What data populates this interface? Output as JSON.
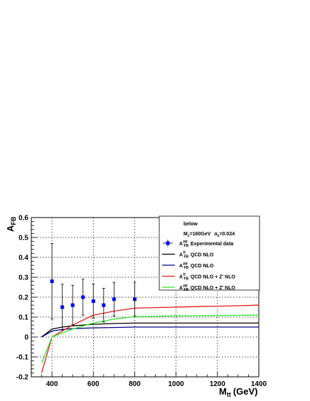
{
  "chart_data": {
    "type": "line",
    "xlabel": {
      "main": "M",
      "sub": "tt",
      "unit": "(GeV)"
    },
    "ylabel": {
      "main": "A",
      "sub": "FB"
    },
    "xlim": [
      300,
      1400
    ],
    "ylim": [
      -0.2,
      0.6
    ],
    "x_ticks": [
      400,
      600,
      800,
      1000,
      1200,
      1400
    ],
    "y_ticks": [
      -0.2,
      -0.1,
      0,
      0.1,
      0.2,
      0.3,
      0.4,
      0.5,
      0.6
    ],
    "grid": true,
    "legend_placement": "top-right",
    "legend_header": {
      "line1": "below",
      "line2_main": "M",
      "line2_sub": "c",
      "line2_rest": "=160GeV",
      "line2_alpha_sub": "s",
      "line2_alpha_rest": "=0.024"
    },
    "experimental": {
      "name": "Experimental data",
      "sym": "A",
      "sup": "pp",
      "sub": "FB",
      "color": "#0000ff",
      "x": [
        400,
        450,
        500,
        550,
        600,
        650,
        700,
        800
      ],
      "y": [
        0.28,
        0.15,
        0.16,
        0.2,
        0.18,
        0.16,
        0.19,
        0.19
      ],
      "err": [
        0.19,
        0.115,
        0.1,
        0.09,
        0.085,
        0.085,
        0.085,
        0.085
      ]
    },
    "series": [
      {
        "name": "QCD NLO",
        "sym": "A",
        "sup": "tt",
        "sub": "FB",
        "color": "#000000",
        "x": [
          350,
          400,
          450,
          500,
          600,
          700,
          800,
          900,
          1000,
          1100,
          1200,
          1300,
          1400
        ],
        "y": [
          0.0,
          0.04,
          0.05,
          0.056,
          0.064,
          0.068,
          0.07,
          0.07,
          0.07,
          0.07,
          0.07,
          0.07,
          0.07
        ]
      },
      {
        "name": "QCD NLO",
        "sym": "A",
        "sup": "pp",
        "sub": "FB",
        "color": "#00008b",
        "x": [
          350,
          400,
          450,
          500,
          600,
          700,
          800,
          900,
          1000,
          1100,
          1200,
          1300,
          1400
        ],
        "y": [
          0.0,
          0.03,
          0.038,
          0.042,
          0.046,
          0.048,
          0.05,
          0.05,
          0.05,
          0.05,
          0.05,
          0.05,
          0.05
        ]
      },
      {
        "name": "QCD NLO + Z' NLO",
        "sym": "A",
        "sup": "tt",
        "sub": "FB",
        "color": "#e31a1c",
        "x": [
          350,
          400,
          450,
          500,
          600,
          700,
          800,
          900,
          1000,
          1100,
          1200,
          1300,
          1400
        ],
        "y": [
          -0.18,
          0.0,
          0.03,
          0.06,
          0.11,
          0.13,
          0.145,
          0.148,
          0.15,
          0.153,
          0.155,
          0.157,
          0.16
        ]
      },
      {
        "name": "QCD NLO + Z' NLO",
        "sym": "A",
        "sup": "pp",
        "sub": "FB",
        "color": "#32e632",
        "x": [
          350,
          400,
          450,
          500,
          600,
          700,
          800,
          900,
          1000,
          1100,
          1200,
          1300,
          1400
        ],
        "y": [
          -0.13,
          0.0,
          0.02,
          0.04,
          0.07,
          0.09,
          0.102,
          0.104,
          0.106,
          0.107,
          0.108,
          0.109,
          0.11
        ]
      }
    ]
  }
}
